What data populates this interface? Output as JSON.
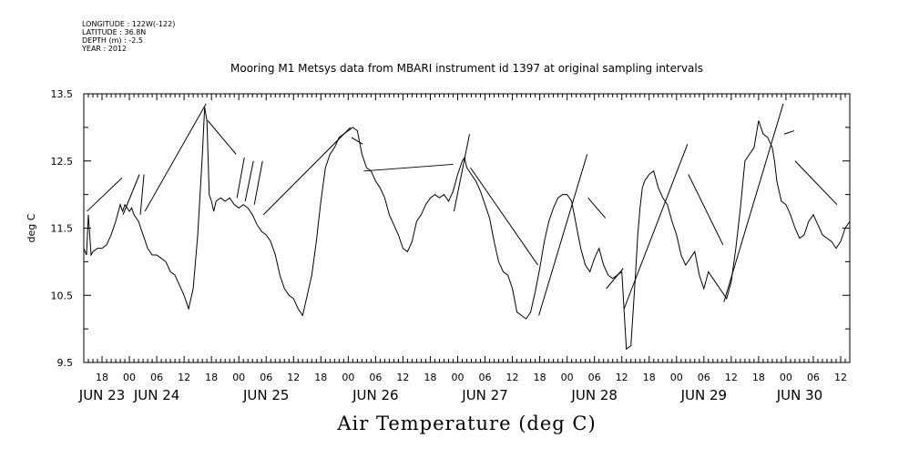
{
  "meta": {
    "longitude": "LONGITUDE : 122W(-122)",
    "latitude": "LATITUDE : 36.8N",
    "depth": "DEPTH (m) : -2.5",
    "year": "YEAR : 2012"
  },
  "chart_data": {
    "type": "line",
    "title": "Mooring M1 Metsys data from MBARI instrument id 1397 at original sampling intervals",
    "xlabel": "Air Temperature (deg C)",
    "ylabel": "deg C",
    "ylim": [
      9.5,
      13.5
    ],
    "y_ticks": [
      "9.5",
      "10.5",
      "11.5",
      "12.5",
      "13.5"
    ],
    "xlim": [
      14,
      182
    ],
    "hour_ticks": [
      {
        "t": 18,
        "label": "18"
      },
      {
        "t": 24,
        "label": "00"
      },
      {
        "t": 30,
        "label": "06"
      },
      {
        "t": 36,
        "label": "12"
      },
      {
        "t": 42,
        "label": "18"
      },
      {
        "t": 48,
        "label": "00"
      },
      {
        "t": 54,
        "label": "06"
      },
      {
        "t": 60,
        "label": "12"
      },
      {
        "t": 66,
        "label": "18"
      },
      {
        "t": 72,
        "label": "00"
      },
      {
        "t": 78,
        "label": "06"
      },
      {
        "t": 84,
        "label": "12"
      },
      {
        "t": 90,
        "label": "18"
      },
      {
        "t": 96,
        "label": "00"
      },
      {
        "t": 102,
        "label": "06"
      },
      {
        "t": 108,
        "label": "12"
      },
      {
        "t": 114,
        "label": "18"
      },
      {
        "t": 120,
        "label": "00"
      },
      {
        "t": 126,
        "label": "06"
      },
      {
        "t": 132,
        "label": "12"
      },
      {
        "t": 138,
        "label": "18"
      },
      {
        "t": 144,
        "label": "00"
      },
      {
        "t": 150,
        "label": "06"
      },
      {
        "t": 156,
        "label": "12"
      },
      {
        "t": 162,
        "label": "18"
      },
      {
        "t": 168,
        "label": "00"
      },
      {
        "t": 174,
        "label": "06"
      },
      {
        "t": 180,
        "label": "12"
      }
    ],
    "date_labels": [
      {
        "t": 18,
        "label": "JUN 23"
      },
      {
        "t": 30,
        "label": "JUN 24"
      },
      {
        "t": 54,
        "label": "JUN 25"
      },
      {
        "t": 78,
        "label": "JUN 26"
      },
      {
        "t": 102,
        "label": "JUN 27"
      },
      {
        "t": 126,
        "label": "JUN 28"
      },
      {
        "t": 150,
        "label": "JUN 29"
      },
      {
        "t": 171,
        "label": "JUN 30"
      }
    ],
    "grid": false,
    "series": [
      {
        "x": [
          14,
          14.6,
          15,
          15.6,
          16,
          17,
          18,
          19,
          20,
          21,
          22,
          22.5,
          23,
          23.5,
          24,
          24.5,
          25,
          26,
          26.5,
          27,
          28,
          29,
          30,
          31,
          32,
          33,
          34,
          35,
          36,
          37,
          38,
          39,
          40,
          40.5,
          41,
          41.5,
          42,
          42.5,
          43,
          44,
          45,
          46,
          47,
          48,
          49,
          50,
          51,
          52,
          53,
          54,
          55,
          56,
          57,
          58,
          59,
          60,
          61,
          62,
          63,
          64,
          65,
          66,
          67,
          68,
          69,
          70,
          71,
          72,
          73,
          74,
          75,
          76,
          77,
          78,
          79,
          80,
          81,
          82,
          83,
          84,
          85,
          86,
          87,
          88,
          89,
          90,
          91,
          92,
          93,
          94,
          95,
          96,
          97,
          97.5,
          98,
          99,
          100,
          101,
          102,
          103,
          104,
          105,
          106,
          107,
          108,
          109,
          110,
          111,
          112,
          113,
          114,
          115,
          116,
          117,
          118,
          119,
          120,
          121,
          122,
          123,
          124,
          125,
          126,
          127,
          128,
          129,
          130,
          131,
          132,
          133,
          134,
          135,
          135.5,
          136,
          136.5,
          137,
          138,
          139,
          140,
          141,
          142,
          143,
          144,
          145,
          146,
          147,
          148,
          149,
          150,
          151,
          152,
          153,
          154,
          155,
          156,
          157,
          158,
          159,
          160,
          161,
          162,
          163,
          164,
          165,
          165.5,
          166,
          167,
          168,
          169,
          170,
          171,
          172,
          173,
          174,
          175,
          176,
          177,
          178,
          179,
          180,
          181,
          182
        ],
        "y": [
          11.2,
          11.1,
          11.7,
          11.1,
          11.15,
          11.2,
          11.2,
          11.25,
          11.4,
          11.6,
          11.85,
          11.75,
          11.85,
          11.8,
          11.75,
          11.8,
          11.7,
          11.6,
          11.5,
          11.4,
          11.2,
          11.1,
          11.1,
          11.05,
          11,
          10.85,
          10.8,
          10.65,
          10.5,
          10.3,
          10.6,
          11.4,
          12.6,
          13.3,
          13.1,
          12,
          11.9,
          11.75,
          11.9,
          11.95,
          11.9,
          11.95,
          11.85,
          11.8,
          11.85,
          11.8,
          11.7,
          11.55,
          11.45,
          11.4,
          11.3,
          11.1,
          10.8,
          10.6,
          10.5,
          10.45,
          10.3,
          10.2,
          10.5,
          10.8,
          11.3,
          11.9,
          12.4,
          12.6,
          12.7,
          12.85,
          12.9,
          12.95,
          13,
          12.95,
          12.6,
          12.4,
          12.35,
          12.2,
          12.1,
          11.95,
          11.7,
          11.55,
          11.4,
          11.2,
          11.15,
          11.3,
          11.6,
          11.7,
          11.85,
          11.95,
          12,
          11.95,
          12,
          11.9,
          12.05,
          12.3,
          12.5,
          12.55,
          12.4,
          12.3,
          12.2,
          12.05,
          11.85,
          11.65,
          11.3,
          11,
          10.85,
          10.8,
          10.6,
          10.25,
          10.2,
          10.15,
          10.25,
          10.55,
          10.9,
          11.3,
          11.6,
          11.8,
          11.95,
          12,
          12,
          11.9,
          11.55,
          11.2,
          10.95,
          10.85,
          11.05,
          11.2,
          10.95,
          10.8,
          10.75,
          10.8,
          10.85,
          9.7,
          9.75,
          10.8,
          11.4,
          11.8,
          12.1,
          12.2,
          12.3,
          12.35,
          12.1,
          11.95,
          11.85,
          11.6,
          11.4,
          11.1,
          10.95,
          11.05,
          11.15,
          10.8,
          10.6,
          10.85,
          10.75,
          10.65,
          10.55,
          10.45,
          10.7,
          11.2,
          11.8,
          12.5,
          12.6,
          12.7,
          13.1,
          12.9,
          12.85,
          12.7,
          12.5,
          12.2,
          11.9,
          11.85,
          11.7,
          11.5,
          11.35,
          11.4,
          11.6,
          11.7,
          11.55,
          11.4,
          11.35,
          11.3,
          11.2,
          11.3,
          11.5,
          11.6
        ]
      },
      {
        "x": [
          14.7,
          22.4,
          22.6,
          26.2,
          26.4,
          27.2,
          27.4,
          40.8,
          41.2,
          47.4,
          47.6,
          49.2,
          49.4,
          51.2,
          51.4,
          53.2,
          53.4,
          72.5,
          72.7,
          75.2,
          75.4,
          95,
          95.2,
          98.6,
          98.8,
          113.6,
          113.8,
          124.4,
          124.6,
          128.4,
          128.6,
          132.3,
          132.5,
          146.4,
          146.6,
          154.2,
          154.4,
          167.4,
          167.6,
          169.8,
          170,
          179.2,
          179.4
        ],
        "y": [
          11.75,
          12.25,
          11.7,
          12.3,
          11.7,
          12.3,
          11.75,
          13.35,
          13.1,
          12.6,
          11.95,
          12.55,
          11.9,
          12.5,
          11.85,
          12.5,
          11.7,
          13.0,
          12.85,
          12.75,
          12.35,
          12.45,
          11.75,
          12.9,
          12.4,
          10.95,
          10.2,
          12.6,
          11.95,
          11.65,
          10.6,
          10.9,
          10.3,
          12.75,
          12.3,
          11.25,
          10.4,
          13.35,
          12.9,
          12.95,
          12.5,
          11.85,
          11.25
        ]
      }
    ]
  }
}
